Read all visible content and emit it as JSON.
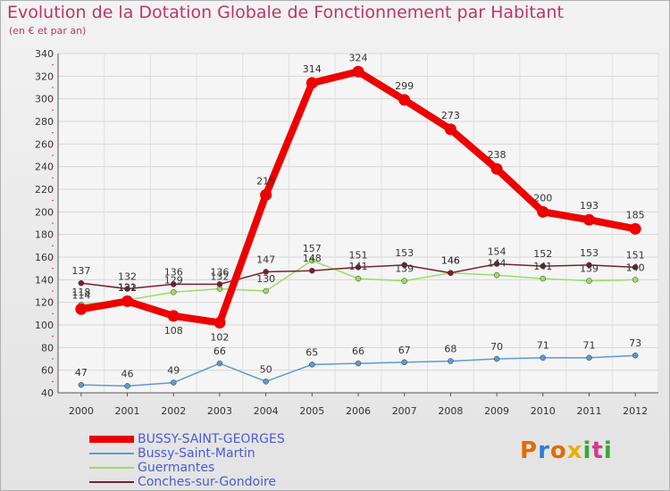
{
  "chart_data": {
    "type": "line",
    "title": "Evolution de la Dotation Globale de Fonctionnement par Habitant",
    "subtitle": "(en € et par an)",
    "xlabel": "",
    "ylabel": "",
    "ylim": [
      40,
      340
    ],
    "ytick_step": 20,
    "categories": [
      "2000",
      "2001",
      "2002",
      "2003",
      "2004",
      "2005",
      "2006",
      "2007",
      "2008",
      "2009",
      "2010",
      "2011",
      "2012"
    ],
    "series": [
      {
        "name": "BUSSY-SAINT-GEORGES",
        "color": "#ee0000",
        "values": [
          114,
          121,
          108,
          102,
          215,
          314,
          324,
          299,
          273,
          238,
          200,
          193,
          185
        ]
      },
      {
        "name": "Bussy-Saint-Martin",
        "color": "#5b9bd5",
        "values": [
          47,
          46,
          49,
          66,
          50,
          65,
          66,
          67,
          68,
          70,
          71,
          71,
          73
        ]
      },
      {
        "name": "Guermantes",
        "color": "#99dd66",
        "values": [
          118,
          122,
          129,
          132,
          130,
          157,
          141,
          139,
          146,
          144,
          141,
          139,
          140
        ]
      },
      {
        "name": "Conches-sur-Gondoire",
        "color": "#7a1f2a",
        "values": [
          137,
          132,
          136,
          136,
          147,
          148,
          151,
          153,
          146,
          154,
          152,
          153,
          151
        ]
      }
    ],
    "legend_position": "bottom-left",
    "grid": true
  },
  "logo": {
    "text": "Proxiti",
    "colors": [
      "#e06c00",
      "#2a7fd0",
      "#e06c00",
      "#e8b000",
      "#3aa53a",
      "#d63a8a",
      "#3aa53a"
    ]
  }
}
